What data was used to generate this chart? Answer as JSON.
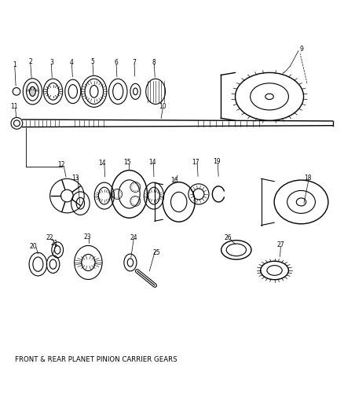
{
  "title": "FRONT & REAR PLANET PINION CARRIER GEARS",
  "bg_color": "#ffffff",
  "line_color": "#000000"
}
